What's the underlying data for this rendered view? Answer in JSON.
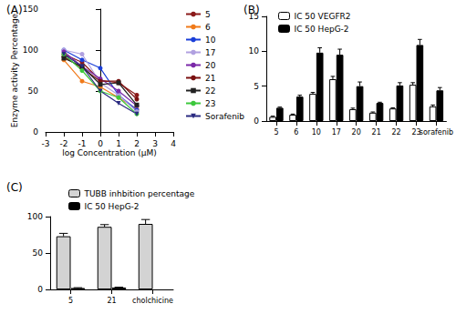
{
  "chart_data": [
    {
      "type": "line",
      "title": "(A)",
      "x_label": "log Concentration (μM)",
      "y_label": "Enzyme activity Percentage",
      "x": [
        -2,
        -1,
        0,
        1,
        2
      ],
      "xlim": [
        -3,
        4
      ],
      "xticks": [
        -3,
        -2,
        -1,
        0,
        1,
        2,
        3,
        4
      ],
      "ylim": [
        0,
        150
      ],
      "yticks": [
        0,
        50,
        100,
        150
      ],
      "grid": false,
      "legend": "right",
      "series": [
        {
          "name": "5",
          "color": "#8b1a1a",
          "marker": "circle",
          "values": [
            95,
            85,
            63,
            60,
            45
          ]
        },
        {
          "name": "6",
          "color": "#f07a1a",
          "marker": "circle",
          "values": [
            88,
            62,
            55,
            42,
            28
          ]
        },
        {
          "name": "10",
          "color": "#1a3fd9",
          "marker": "circle",
          "values": [
            100,
            88,
            78,
            45,
            27
          ]
        },
        {
          "name": "17",
          "color": "#b0a0e0",
          "marker": "circle",
          "values": [
            100,
            95,
            60,
            45,
            25
          ]
        },
        {
          "name": "20",
          "color": "#7a28a8",
          "marker": "circle",
          "values": [
            98,
            80,
            65,
            50,
            32
          ]
        },
        {
          "name": "21",
          "color": "#7a1010",
          "marker": "circle",
          "values": [
            92,
            78,
            62,
            62,
            40
          ]
        },
        {
          "name": "22",
          "color": "#222222",
          "marker": "square",
          "values": [
            90,
            80,
            58,
            60,
            33
          ]
        },
        {
          "name": "23",
          "color": "#3cc83c",
          "marker": "circle",
          "values": [
            95,
            75,
            50,
            42,
            22
          ]
        },
        {
          "name": "Sorafenib",
          "color": "#2a2a80",
          "marker": "triangle-down",
          "values": [
            95,
            80,
            50,
            35,
            22
          ]
        }
      ]
    },
    {
      "type": "bar",
      "title": "(B)",
      "categories": [
        "5",
        "6",
        "10",
        "17",
        "20",
        "21",
        "22",
        "23",
        "sorafenib"
      ],
      "ylim": [
        0,
        15
      ],
      "yticks": [
        0,
        5,
        10,
        15
      ],
      "grid": false,
      "legend": "upper left",
      "series": [
        {
          "name": "IC 50 VEGFR2",
          "color": "#ffffff",
          "values": [
            0.6,
            0.9,
            3.9,
            6.0,
            1.7,
            1.2,
            1.8,
            5.2,
            2.1
          ],
          "errors": [
            0.1,
            0.1,
            0.2,
            0.4,
            0.15,
            0.1,
            0.1,
            0.3,
            0.2
          ]
        },
        {
          "name": "IC 50 HepG-2",
          "color": "#000000",
          "values": [
            1.9,
            3.5,
            9.8,
            9.5,
            5.0,
            2.6,
            5.1,
            10.9,
            4.4
          ],
          "errors": [
            0.1,
            0.2,
            0.7,
            0.8,
            0.6,
            0.1,
            0.4,
            0.8,
            0.4
          ]
        }
      ]
    },
    {
      "type": "bar",
      "title": "(C)",
      "categories": [
        "5",
        "21",
        "cholchicine"
      ],
      "ylim": [
        0,
        100
      ],
      "yticks": [
        0,
        50,
        100
      ],
      "grid": false,
      "legend": "top",
      "series": [
        {
          "name": "TUBB inhbition percentage",
          "color": "#d3d3d3",
          "values": [
            73,
            86,
            90
          ],
          "errors": [
            4,
            3,
            6
          ]
        },
        {
          "name": "IC 50 HepG-2",
          "color": "#000000",
          "values": [
            1.9,
            2.6,
            null
          ],
          "errors": [
            0.5,
            0.5,
            null
          ]
        }
      ]
    }
  ]
}
